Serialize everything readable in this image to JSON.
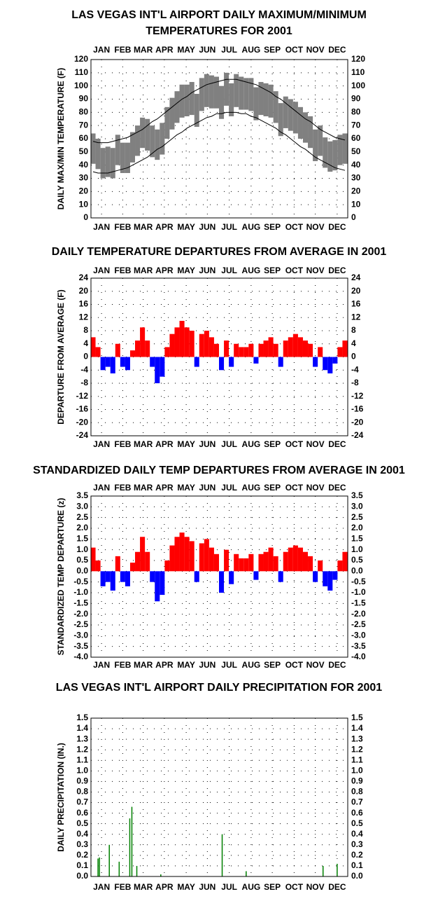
{
  "chart_data": [
    {
      "type": "range",
      "title": [
        "LAS VEGAS INT'L AIRPORT DAILY MAXIMUM/MINIMUM",
        "TEMPERATURES FOR 2001"
      ],
      "ylabel": "DAILY MAX/MIN TEMPERATURE (F)",
      "xaxis_top": true,
      "xlim": [
        1,
        365
      ],
      "xticks": [
        {
          "value": 16,
          "label": "JAN"
        },
        {
          "value": 46,
          "label": "FEB"
        },
        {
          "value": 75,
          "label": "MAR"
        },
        {
          "value": 105,
          "label": "APR"
        },
        {
          "value": 136,
          "label": "MAY"
        },
        {
          "value": 166,
          "label": "JUN"
        },
        {
          "value": 197,
          "label": "JUL"
        },
        {
          "value": 228,
          "label": "AUG"
        },
        {
          "value": 258,
          "label": "SEP"
        },
        {
          "value": 289,
          "label": "OCT"
        },
        {
          "value": 319,
          "label": "NOV"
        },
        {
          "value": 350,
          "label": "DEC"
        }
      ],
      "ylim": [
        0,
        120
      ],
      "yticks": [
        0,
        10,
        20,
        30,
        40,
        50,
        60,
        70,
        80,
        90,
        100,
        110,
        120
      ],
      "grid": true,
      "color": "#808080",
      "line_color": "#000000",
      "x": [
        4,
        11,
        18,
        25,
        32,
        39,
        46,
        53,
        60,
        67,
        74,
        81,
        88,
        95,
        102,
        109,
        116,
        123,
        130,
        137,
        144,
        151,
        158,
        165,
        172,
        179,
        186,
        193,
        200,
        207,
        214,
        221,
        228,
        235,
        242,
        249,
        256,
        263,
        270,
        277,
        284,
        291,
        298,
        305,
        312,
        319,
        326,
        333,
        340,
        347,
        354,
        361
      ],
      "max": [
        64,
        60,
        53,
        54,
        53,
        63,
        57,
        57,
        65,
        70,
        76,
        75,
        70,
        67,
        72,
        84,
        91,
        96,
        101,
        101,
        103,
        94,
        106,
        109,
        108,
        107,
        100,
        110,
        102,
        109,
        107,
        106,
        106,
        99,
        103,
        102,
        101,
        96,
        87,
        92,
        90,
        88,
        84,
        80,
        77,
        67,
        70,
        61,
        58,
        59,
        63,
        64
      ],
      "min": [
        41,
        37,
        30,
        31,
        30,
        40,
        34,
        34,
        42,
        47,
        53,
        51,
        46,
        44,
        48,
        60,
        67,
        72,
        76,
        77,
        78,
        69,
        81,
        84,
        83,
        83,
        75,
        85,
        77,
        84,
        82,
        82,
        81,
        74,
        78,
        77,
        76,
        72,
        62,
        68,
        66,
        64,
        60,
        57,
        53,
        43,
        47,
        38,
        35,
        36,
        40,
        41
      ],
      "normal_max": [
        58,
        57,
        57,
        57,
        58,
        59,
        60,
        61,
        63,
        65,
        67,
        70,
        73,
        75,
        78,
        81,
        84,
        87,
        90,
        92,
        95,
        97,
        99,
        101,
        102,
        103,
        104,
        105,
        105,
        105,
        104,
        103,
        102,
        101,
        99,
        97,
        95,
        92,
        90,
        87,
        84,
        81,
        78,
        75,
        73,
        70,
        67,
        65,
        63,
        61,
        60,
        59
      ],
      "normal_min": [
        35,
        34,
        34,
        34,
        35,
        36,
        37,
        38,
        40,
        42,
        44,
        46,
        49,
        52,
        54,
        57,
        60,
        63,
        65,
        68,
        70,
        72,
        74,
        76,
        77,
        79,
        79,
        80,
        80,
        80,
        79,
        79,
        77,
        76,
        74,
        72,
        70,
        68,
        65,
        63,
        60,
        57,
        54,
        52,
        49,
        46,
        44,
        42,
        40,
        38,
        37,
        36
      ]
    },
    {
      "type": "bar",
      "title": [
        "DAILY TEMPERATURE DEPARTURES FROM AVERAGE IN 2001"
      ],
      "ylabel": "DEPARTURE FROM AVERAGE (F)",
      "xaxis_top": true,
      "xlim": [
        1,
        365
      ],
      "xticks": [
        {
          "value": 16,
          "label": "JAN"
        },
        {
          "value": 46,
          "label": "FEB"
        },
        {
          "value": 75,
          "label": "MAR"
        },
        {
          "value": 105,
          "label": "APR"
        },
        {
          "value": 136,
          "label": "MAY"
        },
        {
          "value": 166,
          "label": "JUN"
        },
        {
          "value": 197,
          "label": "JUL"
        },
        {
          "value": 228,
          "label": "AUG"
        },
        {
          "value": 258,
          "label": "SEP"
        },
        {
          "value": 289,
          "label": "OCT"
        },
        {
          "value": 319,
          "label": "NOV"
        },
        {
          "value": 350,
          "label": "DEC"
        }
      ],
      "ylim": [
        -24,
        24
      ],
      "yticks": [
        -24,
        -20,
        -16,
        -12,
        -8,
        -4,
        0,
        4,
        8,
        12,
        16,
        20,
        24
      ],
      "grid": true,
      "pos_color": "#ff0000",
      "neg_color": "#0000ff",
      "bar_days": 7,
      "x": [
        4,
        11,
        18,
        25,
        32,
        39,
        46,
        53,
        60,
        67,
        74,
        81,
        88,
        95,
        102,
        109,
        116,
        123,
        130,
        137,
        144,
        151,
        158,
        165,
        172,
        179,
        186,
        193,
        200,
        207,
        214,
        221,
        228,
        235,
        242,
        249,
        256,
        263,
        270,
        277,
        284,
        291,
        298,
        305,
        312,
        319,
        326,
        333,
        340,
        347,
        354,
        361
      ],
      "values": [
        6,
        3,
        -4,
        -3,
        -5,
        4,
        -3,
        -4,
        2,
        5,
        9,
        5,
        -3,
        -8,
        -6,
        3,
        7,
        9,
        11,
        9,
        8,
        -3,
        7,
        8,
        6,
        4,
        -4,
        5,
        -3,
        4,
        3,
        3,
        4,
        -2,
        4,
        5,
        6,
        4,
        -3,
        5,
        6,
        7,
        6,
        5,
        4,
        -3,
        3,
        -4,
        -5,
        -2,
        3,
        5
      ]
    },
    {
      "type": "bar",
      "title": [
        "STANDARDIZED DAILY TEMP DEPARTURES FROM AVERAGE IN 2001"
      ],
      "ylabel": "STANDARDIZED TEMP DEPARTURE (z)",
      "xaxis_top": true,
      "xlim": [
        1,
        365
      ],
      "xticks": [
        {
          "value": 16,
          "label": "JAN"
        },
        {
          "value": 46,
          "label": "FEB"
        },
        {
          "value": 75,
          "label": "MAR"
        },
        {
          "value": 105,
          "label": "APR"
        },
        {
          "value": 136,
          "label": "MAY"
        },
        {
          "value": 166,
          "label": "JUN"
        },
        {
          "value": 197,
          "label": "JUL"
        },
        {
          "value": 228,
          "label": "AUG"
        },
        {
          "value": 258,
          "label": "SEP"
        },
        {
          "value": 289,
          "label": "OCT"
        },
        {
          "value": 319,
          "label": "NOV"
        },
        {
          "value": 350,
          "label": "DEC"
        }
      ],
      "ylim": [
        -4,
        3.5
      ],
      "yticks": [
        {
          "value": -4,
          "label": "-4.0"
        },
        -3.5,
        {
          "value": -3,
          "label": "-3.0"
        },
        -2.5,
        {
          "value": -2,
          "label": "-2.0"
        },
        -1.5,
        {
          "value": -1,
          "label": "-1.0"
        },
        -0.5,
        {
          "value": 0,
          "label": "0.0"
        },
        0.5,
        {
          "value": 1,
          "label": "1.0"
        },
        1.5,
        {
          "value": 2,
          "label": "2.0"
        },
        2.5,
        {
          "value": 3,
          "label": "3.0"
        },
        3.5
      ],
      "grid": true,
      "pos_color": "#ff0000",
      "neg_color": "#0000ff",
      "bar_days": 7,
      "x": [
        4,
        11,
        18,
        25,
        32,
        39,
        46,
        53,
        60,
        67,
        74,
        81,
        88,
        95,
        102,
        109,
        116,
        123,
        130,
        137,
        144,
        151,
        158,
        165,
        172,
        179,
        186,
        193,
        200,
        207,
        214,
        221,
        228,
        235,
        242,
        249,
        256,
        263,
        270,
        277,
        284,
        291,
        298,
        305,
        312,
        319,
        326,
        333,
        340,
        347,
        354,
        361
      ],
      "values": [
        1.1,
        0.5,
        -0.7,
        -0.5,
        -0.9,
        0.7,
        -0.5,
        -0.7,
        0.4,
        0.9,
        1.6,
        0.9,
        -0.5,
        -1.4,
        -1.1,
        0.5,
        1.2,
        1.6,
        1.8,
        1.6,
        1.4,
        -0.5,
        1.3,
        1.5,
        1.1,
        0.8,
        -1.0,
        1.0,
        -0.6,
        0.8,
        0.6,
        0.6,
        0.8,
        -0.4,
        0.8,
        0.9,
        1.1,
        0.7,
        -0.5,
        0.9,
        1.1,
        1.2,
        1.1,
        0.9,
        0.7,
        -0.5,
        0.5,
        -0.7,
        -0.9,
        -0.4,
        0.5,
        0.9
      ]
    },
    {
      "type": "bar",
      "title": [
        "LAS VEGAS INT'L AIRPORT DAILY PRECIPITATION FOR 2001"
      ],
      "ylabel": "DAILY PRECIPITATION (IN.)",
      "xaxis_top": false,
      "xlim": [
        1,
        365
      ],
      "xticks": [
        {
          "value": 16,
          "label": "JAN"
        },
        {
          "value": 46,
          "label": "FEB"
        },
        {
          "value": 75,
          "label": "MAR"
        },
        {
          "value": 105,
          "label": "APR"
        },
        {
          "value": 136,
          "label": "MAY"
        },
        {
          "value": 166,
          "label": "JUN"
        },
        {
          "value": 197,
          "label": "JUL"
        },
        {
          "value": 228,
          "label": "AUG"
        },
        {
          "value": 258,
          "label": "SEP"
        },
        {
          "value": 289,
          "label": "OCT"
        },
        {
          "value": 319,
          "label": "NOV"
        },
        {
          "value": 350,
          "label": "DEC"
        }
      ],
      "ylim": [
        0,
        1.5
      ],
      "yticks": [
        {
          "value": 0,
          "label": "0.0"
        },
        0.1,
        0.2,
        0.3,
        0.4,
        0.5,
        0.6,
        0.7,
        0.8,
        0.9,
        {
          "value": 1,
          "label": "1.0"
        },
        1.1,
        1.2,
        1.3,
        1.4,
        1.5
      ],
      "grid": true,
      "pos_color": "#008000",
      "neg_color": "#008000",
      "bar_days": 1.5,
      "x": [
        11,
        13,
        27,
        41,
        56,
        59,
        66,
        100,
        187,
        221,
        330,
        350
      ],
      "values": [
        0.17,
        0.18,
        0.3,
        0.14,
        0.55,
        0.66,
        0.1,
        0.02,
        0.4,
        0.05,
        0.1,
        0.12
      ]
    }
  ]
}
